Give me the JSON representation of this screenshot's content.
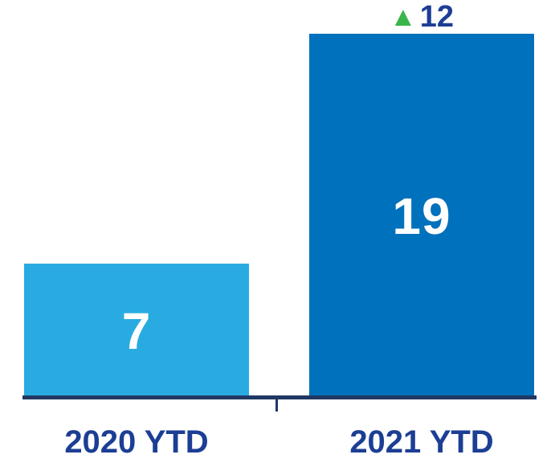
{
  "chart_data": {
    "type": "bar",
    "categories": [
      "2020 YTD",
      "2021 YTD"
    ],
    "values": [
      7,
      19
    ],
    "title": "",
    "xlabel": "",
    "ylabel": "",
    "ylim": [
      0,
      19
    ],
    "grid": false,
    "legend": false,
    "annotations": [
      {
        "text": "▲12",
        "meaning": "increase of 12 vs prior year",
        "applies_to": "2021 YTD",
        "position": "above-bar"
      }
    ],
    "colors": {
      "bar_2020": "#29ABE2",
      "bar_2021": "#0071BC",
      "value_text": "#FFFFFF",
      "category_text": "#1C3E94",
      "delta_triangle": "#39B54A",
      "delta_text": "#1C3E94",
      "axis_line": "#203864"
    }
  },
  "bars": [
    {
      "label": "2020 YTD",
      "value": "7"
    },
    {
      "label": "2021 YTD",
      "value": "19"
    }
  ],
  "delta_label": {
    "icon": "▲",
    "value": "12"
  }
}
